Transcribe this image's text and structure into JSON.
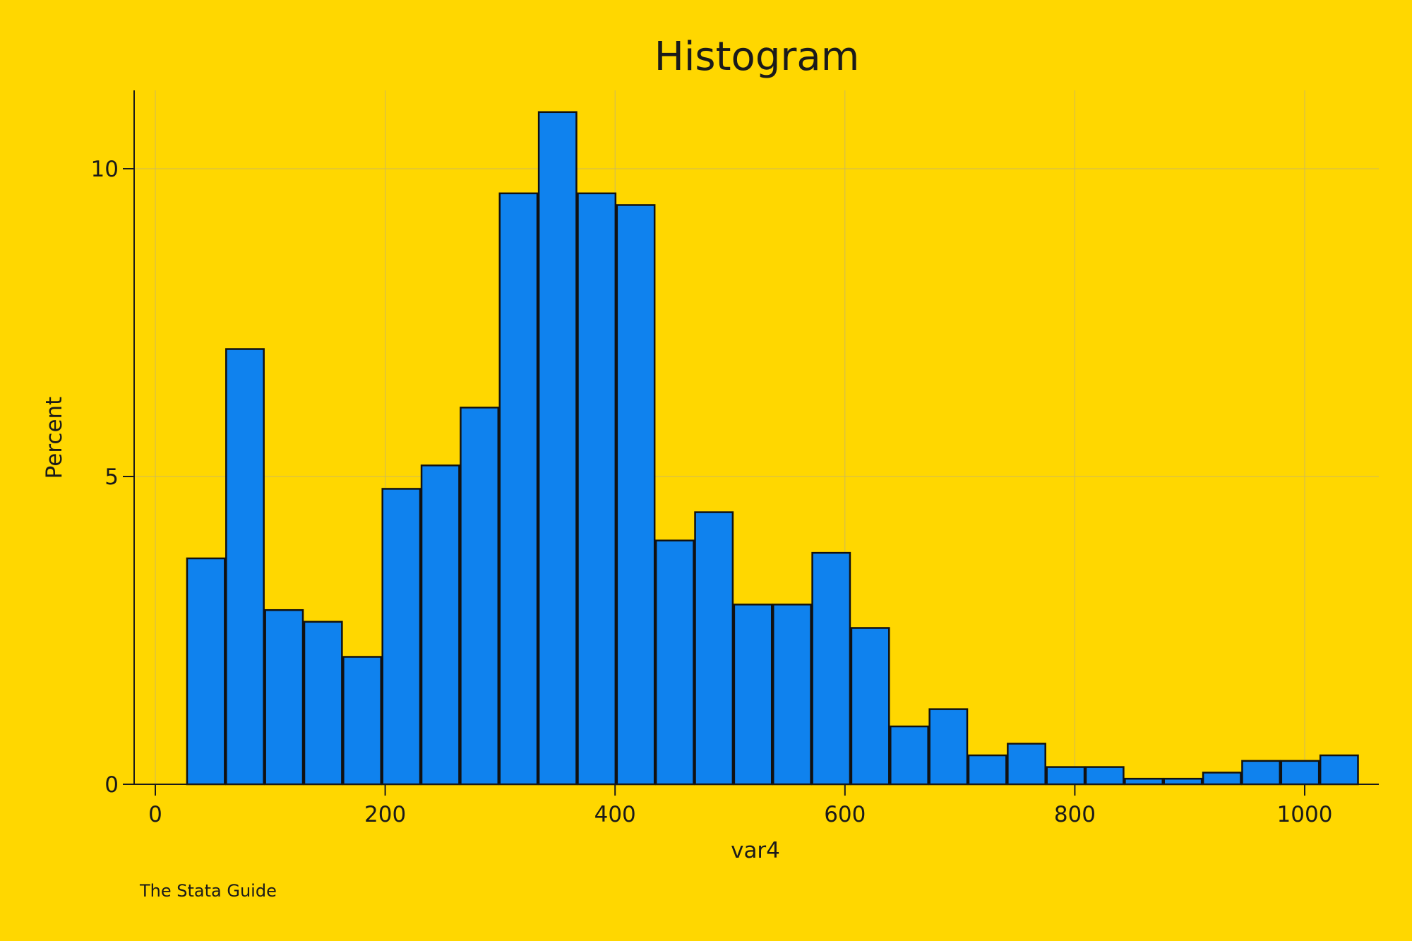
{
  "colors": {
    "background": "#FFD700",
    "bar_fill": "#0F82EE",
    "bar_stroke": "#111111",
    "grid": "#CDB85A",
    "axis": "#1a1a1a"
  },
  "chart_data": {
    "type": "bar",
    "title": "Histogram",
    "xlabel": "var4",
    "ylabel": "Percent",
    "note": "The Stata Guide",
    "xlim": [
      -18,
      1060
    ],
    "ylim": [
      0,
      11.3
    ],
    "xticks": [
      0,
      200,
      400,
      600,
      800,
      1000
    ],
    "yticks": [
      0,
      5,
      10
    ],
    "grid": true,
    "bin_width": 34,
    "bins": [
      {
        "start": 27,
        "value": 3.67
      },
      {
        "start": 61,
        "value": 7.07
      },
      {
        "start": 95,
        "value": 2.83
      },
      {
        "start": 129,
        "value": 2.64
      },
      {
        "start": 163,
        "value": 2.07
      },
      {
        "start": 197,
        "value": 4.8
      },
      {
        "start": 231,
        "value": 5.18
      },
      {
        "start": 265,
        "value": 6.12
      },
      {
        "start": 299,
        "value": 9.6
      },
      {
        "start": 333,
        "value": 10.92
      },
      {
        "start": 367,
        "value": 9.6
      },
      {
        "start": 401,
        "value": 9.41
      },
      {
        "start": 435,
        "value": 3.96
      },
      {
        "start": 469,
        "value": 4.42
      },
      {
        "start": 503,
        "value": 2.92
      },
      {
        "start": 537,
        "value": 2.92
      },
      {
        "start": 571,
        "value": 3.76
      },
      {
        "start": 605,
        "value": 2.54
      },
      {
        "start": 639,
        "value": 0.94
      },
      {
        "start": 673,
        "value": 1.22
      },
      {
        "start": 707,
        "value": 0.47
      },
      {
        "start": 741,
        "value": 0.66
      },
      {
        "start": 775,
        "value": 0.28
      },
      {
        "start": 809,
        "value": 0.28
      },
      {
        "start": 843,
        "value": 0.09
      },
      {
        "start": 877,
        "value": 0.09
      },
      {
        "start": 911,
        "value": 0.19
      },
      {
        "start": 945,
        "value": 0.38
      },
      {
        "start": 979,
        "value": 0.38
      },
      {
        "start": 1013,
        "value": 0.47
      }
    ]
  }
}
